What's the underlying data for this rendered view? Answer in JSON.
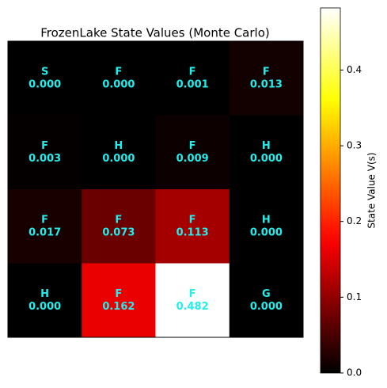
{
  "chart_data": {
    "type": "heatmap",
    "title": "FrozenLake State Values (Monte Carlo)",
    "cell_labels": [
      [
        "S",
        "F",
        "F",
        "F"
      ],
      [
        "F",
        "H",
        "F",
        "H"
      ],
      [
        "F",
        "F",
        "F",
        "H"
      ],
      [
        "H",
        "F",
        "F",
        "G"
      ]
    ],
    "values": [
      [
        0.0,
        0.0,
        0.001,
        0.013
      ],
      [
        0.003,
        0.0,
        0.009,
        0.0
      ],
      [
        0.017,
        0.073,
        0.113,
        0.0
      ],
      [
        0.0,
        0.162,
        0.482,
        0.0
      ]
    ],
    "value_labels": [
      [
        "0.000",
        "0.000",
        "0.001",
        "0.013"
      ],
      [
        "0.003",
        "0.000",
        "0.009",
        "0.000"
      ],
      [
        "0.017",
        "0.073",
        "0.113",
        "0.000"
      ],
      [
        "0.000",
        "0.162",
        "0.482",
        "0.000"
      ]
    ],
    "colormap": "hot",
    "text_color": "#22eeee",
    "colorbar_label": "State Value V(s)",
    "clim": [
      0,
      0.482
    ],
    "colorbar_ticks": [
      {
        "value": 0,
        "label": "0.0"
      },
      {
        "value": 0.1,
        "label": "0.1"
      },
      {
        "value": 0.2,
        "label": "0.2"
      },
      {
        "value": 0.3,
        "label": "0.3"
      },
      {
        "value": 0.4,
        "label": "0.4"
      }
    ]
  }
}
